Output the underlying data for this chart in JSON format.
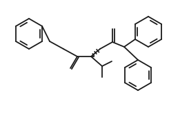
{
  "bg": "#ffffff",
  "lw": 1.3,
  "lc": "#1a1a1a",
  "fig_w": 2.74,
  "fig_h": 1.64,
  "dpi": 100
}
